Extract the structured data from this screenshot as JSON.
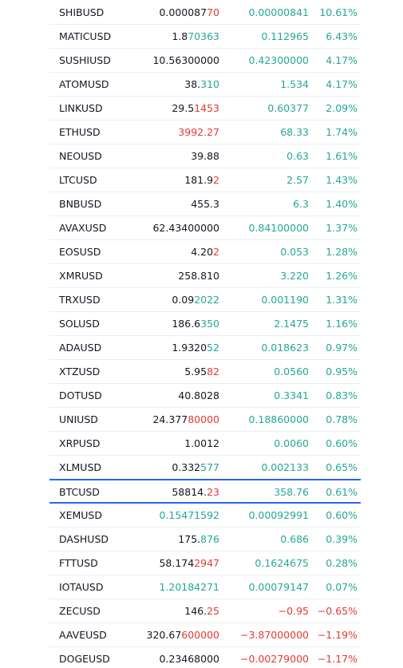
{
  "colors": {
    "up": "#26a69a",
    "down": "#e53935",
    "highlight": "#2962ff"
  },
  "highlight_row": 20,
  "rows": [
    {
      "symbol": "SHIBUSD",
      "price": [
        {
          "text": "0.000087"
        },
        {
          "text": "70",
          "dir": "down"
        }
      ],
      "change": "0.00000841",
      "change_pct": "10.61%"
    },
    {
      "symbol": "MATICUSD",
      "price": [
        {
          "text": "1.8"
        },
        {
          "text": "70363",
          "dir": "up"
        }
      ],
      "change": "0.112965",
      "change_pct": "6.43%"
    },
    {
      "symbol": "SUSHIUSD",
      "price": [
        {
          "text": "10.56300000"
        }
      ],
      "change": "0.42300000",
      "change_pct": "4.17%"
    },
    {
      "symbol": "ATOMUSD",
      "price": [
        {
          "text": "38."
        },
        {
          "text": "310",
          "dir": "up"
        }
      ],
      "change": "1.534",
      "change_pct": "4.17%"
    },
    {
      "symbol": "LINKUSD",
      "price": [
        {
          "text": "29.5"
        },
        {
          "text": "1453",
          "dir": "down"
        }
      ],
      "change": "0.60377",
      "change_pct": "2.09%"
    },
    {
      "symbol": "ETHUSD",
      "price": [
        {
          "text": "3992.27",
          "dir": "down"
        }
      ],
      "change": "68.33",
      "change_pct": "1.74%"
    },
    {
      "symbol": "NEOUSD",
      "price": [
        {
          "text": "39.88"
        }
      ],
      "change": "0.63",
      "change_pct": "1.61%"
    },
    {
      "symbol": "LTCUSD",
      "price": [
        {
          "text": "181.9"
        },
        {
          "text": "2",
          "dir": "down"
        }
      ],
      "change": "2.57",
      "change_pct": "1.43%"
    },
    {
      "symbol": "BNBUSD",
      "price": [
        {
          "text": "455.3"
        }
      ],
      "change": "6.3",
      "change_pct": "1.40%"
    },
    {
      "symbol": "AVAXUSD",
      "price": [
        {
          "text": "62.43400000"
        }
      ],
      "change": "0.84100000",
      "change_pct": "1.37%"
    },
    {
      "symbol": "EOSUSD",
      "price": [
        {
          "text": "4.20"
        },
        {
          "text": "2",
          "dir": "down"
        }
      ],
      "change": "0.053",
      "change_pct": "1.28%"
    },
    {
      "symbol": "XMRUSD",
      "price": [
        {
          "text": "258.810"
        }
      ],
      "change": "3.220",
      "change_pct": "1.26%"
    },
    {
      "symbol": "TRXUSD",
      "price": [
        {
          "text": "0.09"
        },
        {
          "text": "2022",
          "dir": "up"
        }
      ],
      "change": "0.001190",
      "change_pct": "1.31%"
    },
    {
      "symbol": "SOLUSD",
      "price": [
        {
          "text": "186.6"
        },
        {
          "text": "350",
          "dir": "up"
        }
      ],
      "change": "2.1475",
      "change_pct": "1.16%"
    },
    {
      "symbol": "ADAUSD",
      "price": [
        {
          "text": "1.9320"
        },
        {
          "text": "52",
          "dir": "up"
        }
      ],
      "change": "0.018623",
      "change_pct": "0.97%"
    },
    {
      "symbol": "XTZUSD",
      "price": [
        {
          "text": "5.95"
        },
        {
          "text": "82",
          "dir": "down"
        }
      ],
      "change": "0.0560",
      "change_pct": "0.95%"
    },
    {
      "symbol": "DOTUSD",
      "price": [
        {
          "text": "40.8028"
        }
      ],
      "change": "0.3341",
      "change_pct": "0.83%"
    },
    {
      "symbol": "UNIUSD",
      "price": [
        {
          "text": "24.377"
        },
        {
          "text": "80000",
          "dir": "down"
        }
      ],
      "change": "0.18860000",
      "change_pct": "0.78%"
    },
    {
      "symbol": "XRPUSD",
      "price": [
        {
          "text": "1.0012"
        }
      ],
      "change": "0.0060",
      "change_pct": "0.60%"
    },
    {
      "symbol": "XLMUSD",
      "price": [
        {
          "text": "0.332"
        },
        {
          "text": "577",
          "dir": "up"
        }
      ],
      "change": "0.002133",
      "change_pct": "0.65%"
    },
    {
      "symbol": "BTCUSD",
      "price": [
        {
          "text": "58814."
        },
        {
          "text": "23",
          "dir": "down"
        }
      ],
      "change": "358.76",
      "change_pct": "0.61%"
    },
    {
      "symbol": "XEMUSD",
      "price": [
        {
          "text": "0.15471592",
          "dir": "up"
        }
      ],
      "change": "0.00092991",
      "change_pct": "0.60%"
    },
    {
      "symbol": "DASHUSD",
      "price": [
        {
          "text": "175."
        },
        {
          "text": "876",
          "dir": "up"
        }
      ],
      "change": "0.686",
      "change_pct": "0.39%"
    },
    {
      "symbol": "FTTUSD",
      "price": [
        {
          "text": "58.174"
        },
        {
          "text": "2947",
          "dir": "down"
        }
      ],
      "change": "0.1624675",
      "change_pct": "0.28%"
    },
    {
      "symbol": "IOTAUSD",
      "price": [
        {
          "text": "1.20184271",
          "dir": "up"
        }
      ],
      "change": "0.00079147",
      "change_pct": "0.07%"
    },
    {
      "symbol": "ZECUSD",
      "price": [
        {
          "text": "146."
        },
        {
          "text": "25",
          "dir": "down"
        }
      ],
      "change": "−0.95",
      "change_pct": "−0.65%"
    },
    {
      "symbol": "AAVEUSD",
      "price": [
        {
          "text": "320.67"
        },
        {
          "text": "600000",
          "dir": "down"
        }
      ],
      "change": "−3.87000000",
      "change_pct": "−1.19%"
    },
    {
      "symbol": "DOGEUSD",
      "price": [
        {
          "text": "0.23468000"
        }
      ],
      "change": "−0.00279000",
      "change_pct": "−1.17%"
    }
  ]
}
